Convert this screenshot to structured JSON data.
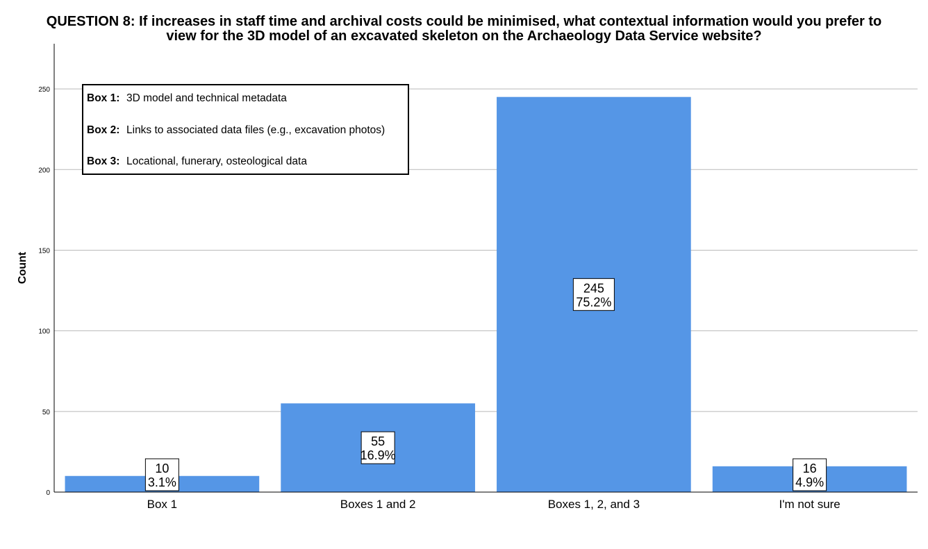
{
  "chart_data": {
    "type": "bar",
    "title": [
      "QUESTION 8: If increases in staff time and archival costs could be minimised, what contextual information would you prefer to",
      "view for the 3D model of an excavated skeleton on the Archaeology Data Service website?"
    ],
    "xlabel": "",
    "ylabel": "Count",
    "ylim": [
      0,
      278
    ],
    "yticks": [
      0,
      50,
      100,
      150,
      200,
      250
    ],
    "grid": true,
    "categories": [
      "Box 1",
      "Boxes 1 and 2",
      "Boxes 1, 2, and 3",
      "I'm not sure"
    ],
    "values": [
      10,
      55,
      245,
      16
    ],
    "percent_labels": [
      "3.1%",
      "16.9%",
      "75.2%",
      "4.9%"
    ],
    "bar_color": "#5596e6",
    "legend_box": {
      "placement": "top-left",
      "entries": [
        {
          "key": "Box 1:",
          "text": "3D model and technical metadata"
        },
        {
          "key": "Box 2:",
          "text": "Links to associated data files (e.g., excavation photos)"
        },
        {
          "key": "Box 3:",
          "text": "Locational, funerary, osteological data"
        }
      ]
    }
  }
}
